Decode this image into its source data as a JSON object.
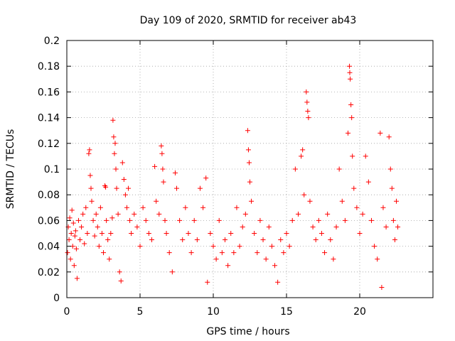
{
  "chart_data": {
    "type": "scatter",
    "title": "Day 109 of 2020, SRMTID for receiver ab43",
    "xlabel": "GPS time / hours",
    "ylabel": "SRMTID / TECUs",
    "xlim": [
      0,
      25
    ],
    "ylim": [
      0,
      0.2
    ],
    "xticks": [
      0,
      5,
      10,
      15,
      20
    ],
    "xtick_labels": [
      "0",
      "5",
      "10",
      "15",
      "20"
    ],
    "yticks": [
      0,
      0.02,
      0.04,
      0.06,
      0.08,
      0.1,
      0.12,
      0.14,
      0.16,
      0.18,
      0.2
    ],
    "ytick_labels": [
      "0",
      "0.02",
      "0.04",
      "0.06",
      "0.08",
      "0.1",
      "0.12",
      "0.14",
      "0.16",
      "0.18",
      "0.2"
    ],
    "grid": true,
    "marker": "+",
    "color": "#ff0000",
    "series": [
      {
        "name": "SRMTID",
        "points": [
          [
            0.05,
            0.035
          ],
          [
            0.1,
            0.055
          ],
          [
            0.15,
            0.045
          ],
          [
            0.2,
            0.062
          ],
          [
            0.25,
            0.03
          ],
          [
            0.3,
            0.05
          ],
          [
            0.35,
            0.068
          ],
          [
            0.4,
            0.04
          ],
          [
            0.45,
            0.058
          ],
          [
            0.5,
            0.025
          ],
          [
            0.55,
            0.048
          ],
          [
            0.6,
            0.052
          ],
          [
            0.65,
            0.038
          ],
          [
            0.7,
            0.015
          ],
          [
            0.8,
            0.06
          ],
          [
            0.9,
            0.045
          ],
          [
            1.0,
            0.055
          ],
          [
            1.1,
            0.065
          ],
          [
            1.2,
            0.042
          ],
          [
            1.3,
            0.07
          ],
          [
            1.4,
            0.05
          ],
          [
            1.5,
            0.112
          ],
          [
            1.55,
            0.115
          ],
          [
            1.6,
            0.095
          ],
          [
            1.65,
            0.085
          ],
          [
            1.7,
            0.075
          ],
          [
            1.8,
            0.06
          ],
          [
            1.9,
            0.048
          ],
          [
            2.0,
            0.065
          ],
          [
            2.1,
            0.055
          ],
          [
            2.2,
            0.04
          ],
          [
            2.3,
            0.07
          ],
          [
            2.4,
            0.05
          ],
          [
            2.5,
            0.035
          ],
          [
            2.6,
            0.087
          ],
          [
            2.65,
            0.086
          ],
          [
            2.7,
            0.06
          ],
          [
            2.8,
            0.045
          ],
          [
            2.9,
            0.03
          ],
          [
            3.0,
            0.05
          ],
          [
            3.1,
            0.062
          ],
          [
            3.15,
            0.138
          ],
          [
            3.2,
            0.125
          ],
          [
            3.25,
            0.112
          ],
          [
            3.3,
            0.12
          ],
          [
            3.35,
            0.1
          ],
          [
            3.4,
            0.085
          ],
          [
            3.5,
            0.065
          ],
          [
            3.6,
            0.02
          ],
          [
            3.7,
            0.013
          ],
          [
            3.8,
            0.105
          ],
          [
            3.9,
            0.092
          ],
          [
            4.0,
            0.08
          ],
          [
            4.1,
            0.07
          ],
          [
            4.2,
            0.085
          ],
          [
            4.3,
            0.06
          ],
          [
            4.4,
            0.05
          ],
          [
            4.6,
            0.065
          ],
          [
            4.8,
            0.055
          ],
          [
            5.0,
            0.04
          ],
          [
            5.2,
            0.07
          ],
          [
            5.4,
            0.06
          ],
          [
            5.6,
            0.05
          ],
          [
            5.8,
            0.045
          ],
          [
            6.0,
            0.102
          ],
          [
            6.1,
            0.075
          ],
          [
            6.3,
            0.065
          ],
          [
            6.45,
            0.118
          ],
          [
            6.5,
            0.112
          ],
          [
            6.55,
            0.1
          ],
          [
            6.6,
            0.09
          ],
          [
            6.7,
            0.06
          ],
          [
            6.8,
            0.05
          ],
          [
            7.0,
            0.035
          ],
          [
            7.2,
            0.02
          ],
          [
            7.4,
            0.097
          ],
          [
            7.5,
            0.085
          ],
          [
            7.7,
            0.06
          ],
          [
            7.9,
            0.045
          ],
          [
            8.1,
            0.07
          ],
          [
            8.3,
            0.05
          ],
          [
            8.5,
            0.035
          ],
          [
            8.7,
            0.06
          ],
          [
            8.9,
            0.045
          ],
          [
            9.1,
            0.085
          ],
          [
            9.3,
            0.07
          ],
          [
            9.5,
            0.093
          ],
          [
            9.6,
            0.012
          ],
          [
            9.8,
            0.05
          ],
          [
            10.0,
            0.04
          ],
          [
            10.2,
            0.03
          ],
          [
            10.4,
            0.06
          ],
          [
            10.6,
            0.035
          ],
          [
            10.8,
            0.045
          ],
          [
            11.0,
            0.025
          ],
          [
            11.2,
            0.05
          ],
          [
            11.4,
            0.035
          ],
          [
            11.6,
            0.07
          ],
          [
            11.8,
            0.04
          ],
          [
            12.0,
            0.055
          ],
          [
            12.2,
            0.065
          ],
          [
            12.35,
            0.13
          ],
          [
            12.4,
            0.115
          ],
          [
            12.45,
            0.105
          ],
          [
            12.5,
            0.09
          ],
          [
            12.6,
            0.075
          ],
          [
            12.8,
            0.05
          ],
          [
            13.0,
            0.035
          ],
          [
            13.2,
            0.06
          ],
          [
            13.4,
            0.045
          ],
          [
            13.6,
            0.03
          ],
          [
            13.8,
            0.055
          ],
          [
            14.0,
            0.04
          ],
          [
            14.2,
            0.025
          ],
          [
            14.4,
            0.012
          ],
          [
            14.6,
            0.045
          ],
          [
            14.8,
            0.035
          ],
          [
            15.0,
            0.05
          ],
          [
            15.2,
            0.04
          ],
          [
            15.4,
            0.06
          ],
          [
            15.6,
            0.1
          ],
          [
            15.8,
            0.065
          ],
          [
            16.0,
            0.11
          ],
          [
            16.1,
            0.115
          ],
          [
            16.2,
            0.08
          ],
          [
            16.35,
            0.16
          ],
          [
            16.4,
            0.152
          ],
          [
            16.45,
            0.145
          ],
          [
            16.5,
            0.14
          ],
          [
            16.6,
            0.075
          ],
          [
            16.8,
            0.055
          ],
          [
            17.0,
            0.045
          ],
          [
            17.2,
            0.06
          ],
          [
            17.4,
            0.05
          ],
          [
            17.6,
            0.035
          ],
          [
            17.8,
            0.065
          ],
          [
            18.0,
            0.045
          ],
          [
            18.2,
            0.03
          ],
          [
            18.4,
            0.055
          ],
          [
            18.6,
            0.1
          ],
          [
            18.8,
            0.075
          ],
          [
            19.0,
            0.06
          ],
          [
            19.2,
            0.128
          ],
          [
            19.3,
            0.18
          ],
          [
            19.32,
            0.175
          ],
          [
            19.35,
            0.17
          ],
          [
            19.4,
            0.15
          ],
          [
            19.45,
            0.14
          ],
          [
            19.5,
            0.11
          ],
          [
            19.6,
            0.085
          ],
          [
            19.8,
            0.07
          ],
          [
            20.0,
            0.05
          ],
          [
            20.2,
            0.065
          ],
          [
            20.4,
            0.11
          ],
          [
            20.6,
            0.09
          ],
          [
            20.8,
            0.06
          ],
          [
            21.0,
            0.04
          ],
          [
            21.2,
            0.03
          ],
          [
            21.4,
            0.128
          ],
          [
            21.5,
            0.008
          ],
          [
            21.6,
            0.07
          ],
          [
            21.8,
            0.055
          ],
          [
            22.0,
            0.125
          ],
          [
            22.1,
            0.1
          ],
          [
            22.2,
            0.085
          ],
          [
            22.3,
            0.06
          ],
          [
            22.4,
            0.045
          ],
          [
            22.5,
            0.075
          ],
          [
            22.6,
            0.055
          ]
        ]
      }
    ]
  }
}
